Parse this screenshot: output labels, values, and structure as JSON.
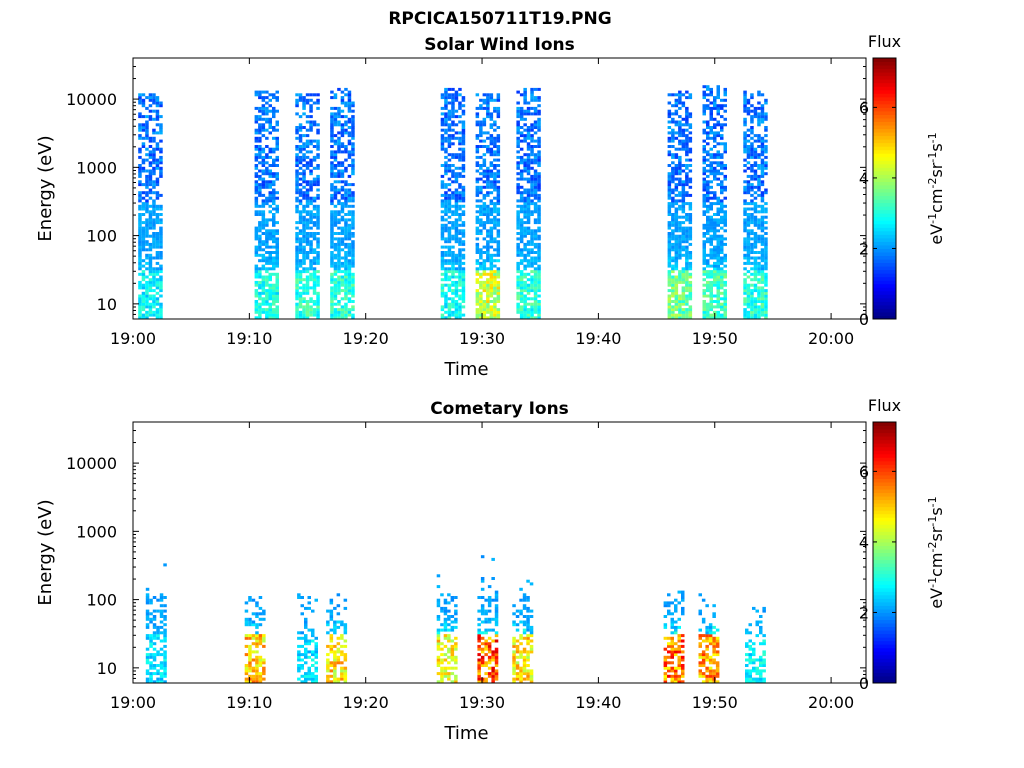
{
  "figure": {
    "title": "RPCICA150711T19.PNG"
  },
  "chart_data": [
    {
      "type": "heatmap",
      "title": "Solar Wind Ions",
      "xlabel": "Time",
      "ylabel": "Energy (eV)",
      "yscale": "log",
      "ylim": [
        6,
        40000
      ],
      "xlim": [
        "19:00",
        "20:03"
      ],
      "x_ticks": [
        "19:00",
        "19:10",
        "19:20",
        "19:30",
        "19:40",
        "19:50",
        "20:00"
      ],
      "y_ticks": [
        "10",
        "100",
        "1000",
        "10000"
      ],
      "grid": false,
      "colorbar": {
        "label_top": "Flux",
        "ticks": [
          "0",
          "2",
          "4",
          "6"
        ],
        "range": [
          0,
          7.4
        ],
        "colormap": "jet"
      },
      "bursts": [
        {
          "time": "19:01:30",
          "e_top": 12000,
          "peak_flux": 3.2
        },
        {
          "time": "19:11:30",
          "e_top": 13000,
          "peak_flux": 3.4
        },
        {
          "time": "19:15:00",
          "e_top": 12000,
          "peak_flux": 3.6
        },
        {
          "time": "19:18:00",
          "e_top": 14000,
          "peak_flux": 3.6
        },
        {
          "time": "19:27:30",
          "e_top": 14000,
          "peak_flux": 3.4
        },
        {
          "time": "19:30:30",
          "e_top": 12000,
          "peak_flux": 5.0
        },
        {
          "time": "19:34:00",
          "e_top": 14000,
          "peak_flux": 3.6
        },
        {
          "time": "19:47:00",
          "e_top": 13000,
          "peak_flux": 4.2
        },
        {
          "time": "19:50:00",
          "e_top": 16000,
          "peak_flux": 3.8
        },
        {
          "time": "19:53:30",
          "e_top": 13000,
          "peak_flux": 3.6
        }
      ]
    },
    {
      "type": "heatmap",
      "title": "Cometary Ions",
      "xlabel": "Time",
      "ylabel": "Energy (eV)",
      "yscale": "log",
      "ylim": [
        6,
        40000
      ],
      "xlim": [
        "19:00",
        "20:03"
      ],
      "x_ticks": [
        "19:00",
        "19:10",
        "19:20",
        "19:30",
        "19:40",
        "19:50",
        "20:00"
      ],
      "y_ticks": [
        "10",
        "100",
        "1000",
        "10000"
      ],
      "grid": false,
      "colorbar": {
        "label_top": "Flux",
        "ticks": [
          "0",
          "2",
          "4",
          "6"
        ],
        "range": [
          0,
          7.4
        ],
        "colormap": "jet"
      },
      "bursts": [
        {
          "time": "19:02:00",
          "e_top": 450,
          "peak_flux": 3.0
        },
        {
          "time": "19:10:30",
          "e_top": 120,
          "peak_flux": 5.8
        },
        {
          "time": "19:15:00",
          "e_top": 120,
          "peak_flux": 3.0
        },
        {
          "time": "19:17:30",
          "e_top": 120,
          "peak_flux": 5.6
        },
        {
          "time": "19:27:00",
          "e_top": 300,
          "peak_flux": 5.4
        },
        {
          "time": "19:30:30",
          "e_top": 450,
          "peak_flux": 6.8
        },
        {
          "time": "19:33:30",
          "e_top": 200,
          "peak_flux": 5.6
        },
        {
          "time": "19:46:30",
          "e_top": 150,
          "peak_flux": 6.6
        },
        {
          "time": "19:49:30",
          "e_top": 120,
          "peak_flux": 6.2
        },
        {
          "time": "19:53:30",
          "e_top": 80,
          "peak_flux": 3.2
        }
      ]
    }
  ]
}
